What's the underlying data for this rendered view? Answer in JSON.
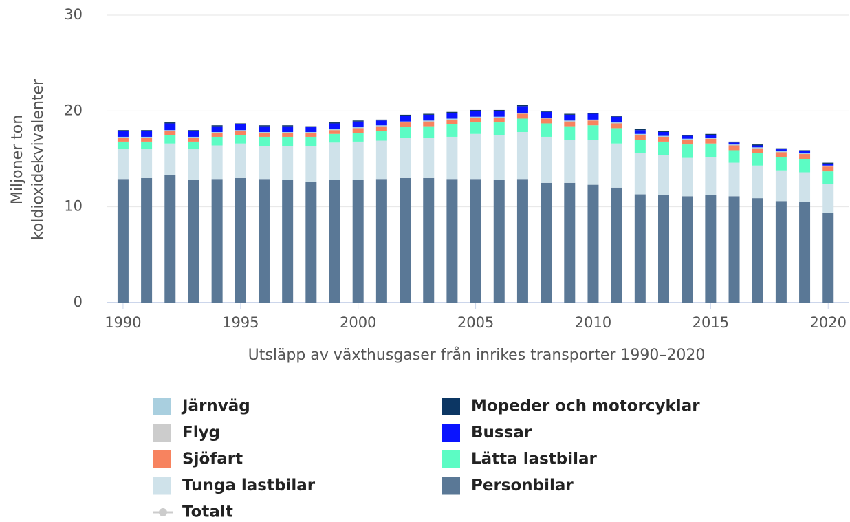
{
  "chart_data": {
    "type": "stacked_bar",
    "x_axis_label": "Utsläpp av växthusgaser från inrikes transporter 1990–2020",
    "y_axis_label": [
      "Miljoner ton",
      "koldioxidekvivalenter"
    ],
    "x": [
      1990,
      1991,
      1992,
      1993,
      1994,
      1995,
      1996,
      1997,
      1998,
      1999,
      2000,
      2001,
      2002,
      2003,
      2004,
      2005,
      2006,
      2007,
      2008,
      2009,
      2010,
      2011,
      2012,
      2013,
      2014,
      2015,
      2016,
      2017,
      2018,
      2019,
      2020
    ],
    "xlim": [
      1989.3,
      2020.9
    ],
    "xticks": [
      1990,
      1995,
      2000,
      2005,
      2010,
      2015,
      2020
    ],
    "ylim": [
      0,
      30
    ],
    "yticks": [
      0,
      10,
      20,
      30
    ],
    "grid": true,
    "series": [
      {
        "name": "Personbilar",
        "color": "#5a7896",
        "values": [
          12.9,
          13.0,
          13.3,
          12.8,
          12.9,
          13.0,
          12.9,
          12.8,
          12.6,
          12.8,
          12.8,
          12.9,
          13.0,
          13.0,
          12.9,
          12.9,
          12.8,
          12.9,
          12.5,
          12.5,
          12.3,
          12.0,
          11.3,
          11.2,
          11.1,
          11.2,
          11.1,
          10.9,
          10.6,
          10.5,
          9.4
        ]
      },
      {
        "name": "Tunga lastbilar",
        "color": "#cfe2ea",
        "values": [
          3.1,
          3.0,
          3.3,
          3.2,
          3.5,
          3.6,
          3.4,
          3.5,
          3.7,
          3.9,
          4.0,
          4.0,
          4.2,
          4.2,
          4.4,
          4.7,
          4.7,
          4.9,
          4.8,
          4.5,
          4.7,
          4.6,
          4.3,
          4.2,
          4.0,
          4.0,
          3.5,
          3.4,
          3.2,
          3.1,
          3.0
        ]
      },
      {
        "name": "Lätta lastbilar",
        "color": "#5cfcc4",
        "values": [
          0.8,
          0.8,
          0.9,
          0.8,
          0.9,
          0.9,
          1.0,
          1.0,
          1.0,
          0.9,
          0.9,
          1.0,
          1.1,
          1.2,
          1.3,
          1.2,
          1.3,
          1.4,
          1.4,
          1.4,
          1.5,
          1.6,
          1.4,
          1.4,
          1.4,
          1.4,
          1.3,
          1.3,
          1.4,
          1.4,
          1.3
        ]
      },
      {
        "name": "Sjöfart",
        "color": "#f7835f",
        "values": [
          0.4,
          0.4,
          0.4,
          0.4,
          0.4,
          0.4,
          0.4,
          0.4,
          0.4,
          0.4,
          0.5,
          0.5,
          0.5,
          0.5,
          0.5,
          0.5,
          0.5,
          0.5,
          0.5,
          0.5,
          0.5,
          0.5,
          0.5,
          0.5,
          0.5,
          0.5,
          0.5,
          0.5,
          0.5,
          0.5,
          0.5
        ]
      },
      {
        "name": "Järnväg",
        "color": "#a9cfdf",
        "values": [
          0.1,
          0.1,
          0.1,
          0.1,
          0.1,
          0.1,
          0.1,
          0.1,
          0.1,
          0.1,
          0.1,
          0.1,
          0.1,
          0.1,
          0.1,
          0.1,
          0.1,
          0.1,
          0.1,
          0.1,
          0.1,
          0.1,
          0.1,
          0.1,
          0.1,
          0.1,
          0.1,
          0.1,
          0.1,
          0.1,
          0.1
        ]
      },
      {
        "name": "Bussar",
        "color": "#0a14ff",
        "values": [
          0.6,
          0.6,
          0.7,
          0.6,
          0.6,
          0.6,
          0.6,
          0.6,
          0.5,
          0.6,
          0.6,
          0.5,
          0.6,
          0.6,
          0.6,
          0.6,
          0.6,
          0.7,
          0.6,
          0.6,
          0.6,
          0.6,
          0.4,
          0.4,
          0.3,
          0.3,
          0.2,
          0.2,
          0.2,
          0.2,
          0.2
        ]
      },
      {
        "name": "Mopeder och motorcyklar",
        "color": "#0c3663",
        "values": [
          0.1,
          0.1,
          0.1,
          0.1,
          0.1,
          0.1,
          0.1,
          0.1,
          0.1,
          0.1,
          0.1,
          0.1,
          0.1,
          0.1,
          0.1,
          0.1,
          0.1,
          0.1,
          0.1,
          0.1,
          0.1,
          0.1,
          0.1,
          0.1,
          0.1,
          0.1,
          0.1,
          0.1,
          0.1,
          0.1,
          0.1
        ]
      }
    ],
    "hidden_series": [
      {
        "name": "Flyg",
        "color": "#cccccc"
      },
      {
        "name": "Totalt",
        "color": "#cccccc"
      }
    ]
  }
}
